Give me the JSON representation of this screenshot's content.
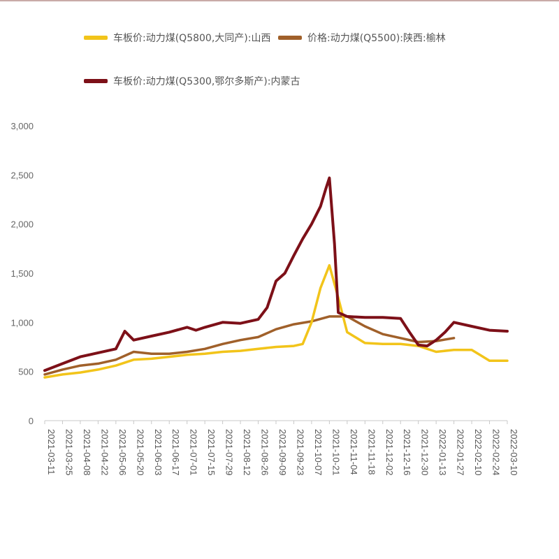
{
  "chart_data": {
    "type": "line",
    "title": "",
    "xlabel": "",
    "ylabel": "",
    "ylim": [
      0,
      3000
    ],
    "yticks": [
      0,
      500,
      1000,
      1500,
      2000,
      2500,
      3000
    ],
    "ytick_labels": [
      "0",
      "500",
      "1,000",
      "1,500",
      "2,000",
      "2,500",
      "3,000"
    ],
    "xtick_labels": [
      "2021-03-11",
      "2021-03-25",
      "2021-04-08",
      "2021-04-22",
      "2021-05-06",
      "2021-05-20",
      "2021-06-03",
      "2021-06-17",
      "2021-07-01",
      "2021-07-15",
      "2021-07-29",
      "2021-08-12",
      "2021-08-26",
      "2021-09-09",
      "2021-09-23",
      "2021-10-07",
      "2021-10-21",
      "2021-11-04",
      "2021-11-18",
      "2021-12-02",
      "2021-12-16",
      "2021-12-30",
      "2022-01-13",
      "2022-01-27",
      "2022-02-10",
      "2022-02-24",
      "2022-03-10"
    ],
    "grid": false,
    "legend_position": "top",
    "series": [
      {
        "name": "车板价:动力煤(Q5800,大同产):山西",
        "color": "#f2c41a",
        "x": [
          "2021-03-11",
          "2021-03-25",
          "2021-04-08",
          "2021-04-22",
          "2021-05-06",
          "2021-05-20",
          "2021-06-03",
          "2021-06-17",
          "2021-07-01",
          "2021-07-15",
          "2021-07-29",
          "2021-08-12",
          "2021-08-26",
          "2021-09-09",
          "2021-09-23",
          "2021-09-30",
          "2021-10-07",
          "2021-10-14",
          "2021-10-21",
          "2021-10-28",
          "2021-11-04",
          "2021-11-18",
          "2021-12-02",
          "2021-12-16",
          "2021-12-30",
          "2022-01-13",
          "2022-01-27",
          "2022-02-10",
          "2022-02-24",
          "2022-03-10"
        ],
        "values": [
          440,
          470,
          490,
          520,
          560,
          620,
          630,
          650,
          670,
          680,
          700,
          710,
          730,
          750,
          760,
          780,
          1000,
          1350,
          1580,
          1250,
          900,
          790,
          780,
          780,
          760,
          700,
          720,
          720,
          610,
          610
        ]
      },
      {
        "name": "价格:动力煤(Q5500):陕西:榆林",
        "color": "#a0602a",
        "x": [
          "2021-03-11",
          "2021-03-25",
          "2021-04-08",
          "2021-04-22",
          "2021-05-06",
          "2021-05-20",
          "2021-06-03",
          "2021-06-17",
          "2021-07-01",
          "2021-07-15",
          "2021-07-29",
          "2021-08-12",
          "2021-08-26",
          "2021-09-09",
          "2021-09-23",
          "2021-10-07",
          "2021-10-21",
          "2021-11-04",
          "2021-11-18",
          "2021-12-02",
          "2021-12-16",
          "2021-12-30",
          "2022-01-13",
          "2022-01-27"
        ],
        "values": [
          470,
          520,
          560,
          580,
          620,
          700,
          680,
          680,
          700,
          730,
          780,
          820,
          850,
          930,
          980,
          1010,
          1060,
          1060,
          960,
          880,
          840,
          800,
          810,
          840
        ]
      },
      {
        "name": "车板价:动力煤(Q5300,鄂尔多斯产):内蒙古",
        "color": "#7d1018",
        "x": [
          "2021-03-11",
          "2021-03-25",
          "2021-04-08",
          "2021-04-22",
          "2021-05-06",
          "2021-05-13",
          "2021-05-20",
          "2021-06-03",
          "2021-06-17",
          "2021-07-01",
          "2021-07-08",
          "2021-07-15",
          "2021-07-29",
          "2021-08-12",
          "2021-08-26",
          "2021-09-02",
          "2021-09-09",
          "2021-09-16",
          "2021-09-23",
          "2021-09-30",
          "2021-10-07",
          "2021-10-14",
          "2021-10-18",
          "2021-10-21",
          "2021-10-25",
          "2021-10-28",
          "2021-11-04",
          "2021-11-18",
          "2021-12-02",
          "2021-12-16",
          "2021-12-23",
          "2021-12-30",
          "2022-01-06",
          "2022-01-13",
          "2022-01-20",
          "2022-01-27",
          "2022-02-10",
          "2022-02-24",
          "2022-03-10"
        ],
        "values": [
          510,
          580,
          650,
          690,
          730,
          910,
          820,
          860,
          900,
          950,
          920,
          950,
          1000,
          990,
          1030,
          1150,
          1420,
          1500,
          1680,
          1850,
          2000,
          2180,
          2350,
          2470,
          1800,
          1100,
          1060,
          1050,
          1050,
          1040,
          900,
          770,
          760,
          820,
          900,
          1000,
          960,
          920,
          910
        ]
      }
    ]
  }
}
